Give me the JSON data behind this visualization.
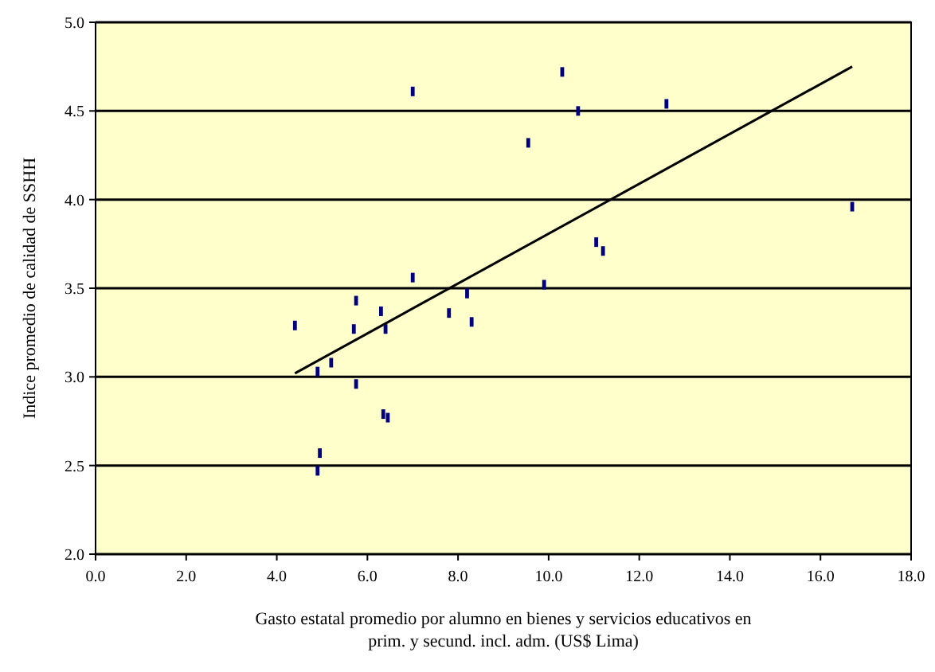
{
  "chart_data": {
    "type": "scatter",
    "xlabel": "Gasto estatal promedio por alumno en bienes y servicios educativos en prim. y secund. incl. adm. (US$ Lima)",
    "ylabel": "Indice promedio de calidad de SSHH",
    "xlim": [
      0,
      18
    ],
    "ylim": [
      2,
      5
    ],
    "xticks": [
      {
        "value": 0,
        "label": "0.0"
      },
      {
        "value": 2,
        "label": "2.0"
      },
      {
        "value": 4,
        "label": "4.0"
      },
      {
        "value": 6,
        "label": "6.0"
      },
      {
        "value": 8,
        "label": "8.0"
      },
      {
        "value": 10,
        "label": "10.0"
      },
      {
        "value": 12,
        "label": "12.0"
      },
      {
        "value": 14,
        "label": "14.0"
      },
      {
        "value": 16,
        "label": "16.0"
      },
      {
        "value": 18,
        "label": "18.0"
      }
    ],
    "yticks": [
      {
        "value": 2,
        "label": "2.0"
      },
      {
        "value": 2.5,
        "label": "2.5"
      },
      {
        "value": 3,
        "label": "3.0"
      },
      {
        "value": 3.5,
        "label": "3.5"
      },
      {
        "value": 4,
        "label": "4.0"
      },
      {
        "value": 4.5,
        "label": "4.5"
      },
      {
        "value": 5,
        "label": "5.0"
      }
    ],
    "grid": "y",
    "series": [
      {
        "color": "#000080",
        "x": [
          4.4,
          4.9,
          5.2,
          5.7,
          5.75,
          5.75,
          4.95,
          4.9,
          6.3,
          6.4,
          6.35,
          6.45,
          7.0,
          7.0,
          7.8,
          8.2,
          8.3,
          9.55,
          9.9,
          10.3,
          10.65,
          11.05,
          11.2,
          12.6,
          16.7
        ],
        "values": [
          3.29,
          3.03,
          3.08,
          3.27,
          3.43,
          2.96,
          2.57,
          2.47,
          3.37,
          3.27,
          2.79,
          2.77,
          3.56,
          4.61,
          3.36,
          3.47,
          3.31,
          4.32,
          3.52,
          4.72,
          4.5,
          3.76,
          3.71,
          4.54,
          3.96
        ]
      },
      {
        "type": "line",
        "color": "#000000",
        "x": [
          4.4,
          16.7
        ],
        "values": [
          3.02,
          4.75
        ]
      }
    ]
  }
}
